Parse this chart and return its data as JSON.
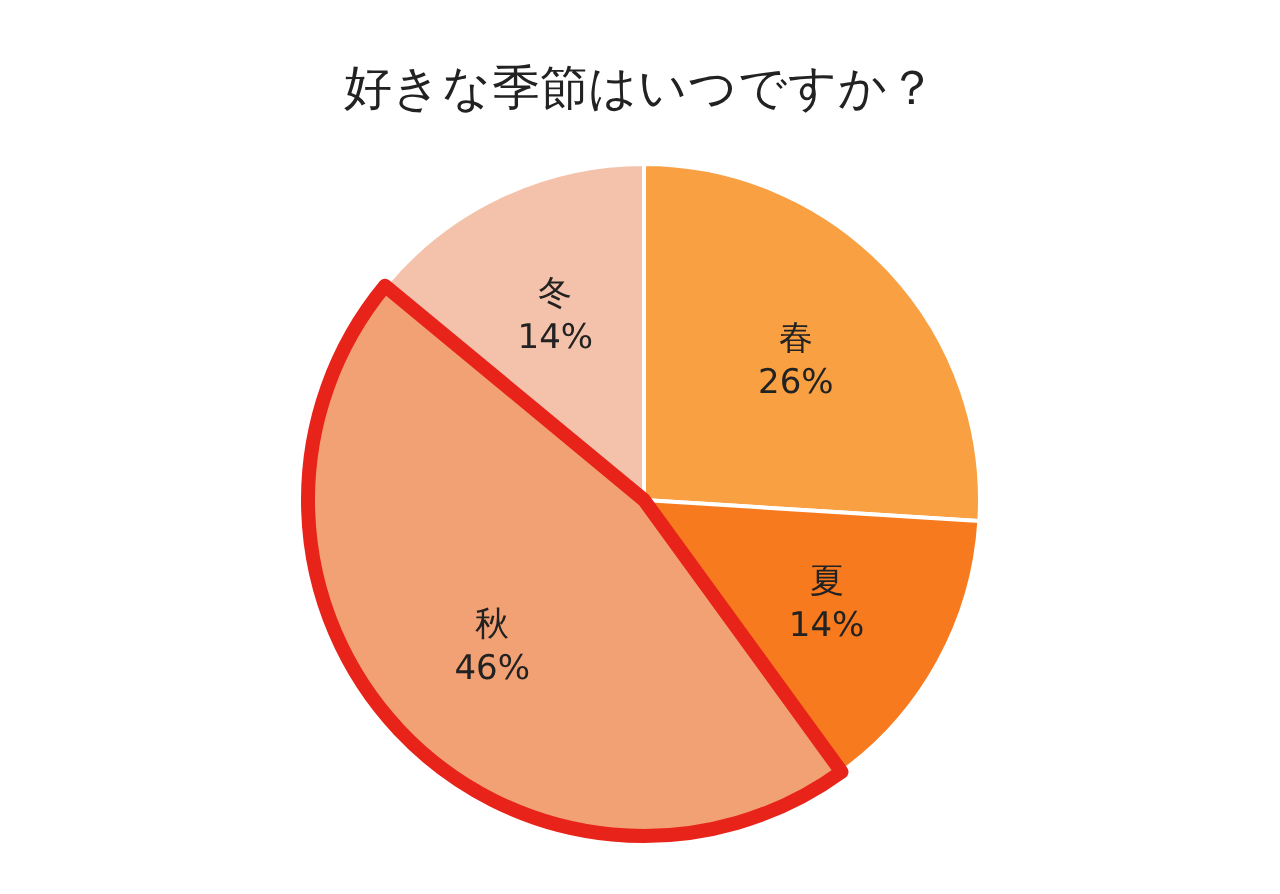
{
  "chart_data": {
    "type": "pie",
    "title": "好きな季節はいつですか？",
    "categories": [
      "春",
      "夏",
      "秋",
      "冬"
    ],
    "values": [
      26,
      14,
      46,
      14
    ],
    "colors": [
      "#f9a043",
      "#f77a1e",
      "#f2a174",
      "#f4c2ab"
    ],
    "value_labels": [
      "26%",
      "14%",
      "46%",
      "14%"
    ]
  }
}
